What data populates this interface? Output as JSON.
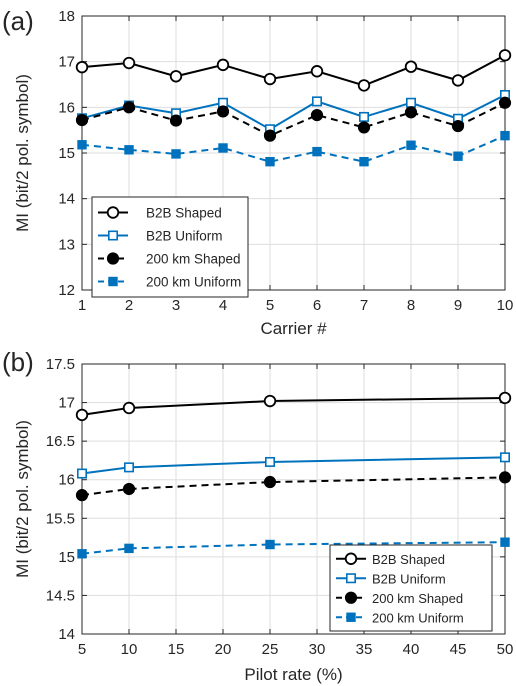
{
  "chart_data": [
    {
      "type": "line",
      "panel_label": "(a)",
      "xlabel": "Carrier #",
      "ylabel": "MI (bit/2 pol. symbol)",
      "x": [
        1,
        2,
        3,
        4,
        5,
        6,
        7,
        8,
        9,
        10
      ],
      "xlim": [
        1,
        10
      ],
      "ylim": [
        12,
        18
      ],
      "xticks": [
        1,
        2,
        3,
        4,
        5,
        6,
        7,
        8,
        9,
        10
      ],
      "yticks": [
        12,
        13,
        14,
        15,
        16,
        17,
        18
      ],
      "grid": true,
      "legend_position": "bottom-left",
      "series": [
        {
          "name": "B2B Shaped",
          "values": [
            16.88,
            16.97,
            16.68,
            16.93,
            16.62,
            16.79,
            16.48,
            16.89,
            16.59,
            17.14
          ],
          "color": "#000000",
          "dash": "solid",
          "marker": "circle-open"
        },
        {
          "name": "B2B Uniform",
          "values": [
            15.76,
            16.04,
            15.87,
            16.1,
            15.52,
            16.13,
            15.79,
            16.1,
            15.75,
            16.27
          ],
          "color": "#0072bd",
          "dash": "solid",
          "marker": "square-open"
        },
        {
          "name": "200 km Shaped",
          "values": [
            15.72,
            16.0,
            15.71,
            15.91,
            15.38,
            15.83,
            15.56,
            15.89,
            15.59,
            16.1
          ],
          "color": "#000000",
          "dash": "dashed",
          "marker": "circle-filled"
        },
        {
          "name": "200 km Uniform",
          "values": [
            15.18,
            15.07,
            14.98,
            15.11,
            14.81,
            15.03,
            14.81,
            15.17,
            14.93,
            15.38
          ],
          "color": "#0072bd",
          "dash": "dashed",
          "marker": "square-filled"
        }
      ]
    },
    {
      "type": "line",
      "panel_label": "(b)",
      "xlabel": "Pilot rate (%)",
      "ylabel": "MI (bit/2 pol. symbol)",
      "x": [
        5,
        10,
        25,
        50
      ],
      "xlim": [
        5,
        50
      ],
      "ylim": [
        14,
        17.5
      ],
      "xticks": [
        5,
        10,
        15,
        20,
        25,
        30,
        35,
        40,
        45,
        50
      ],
      "yticks": [
        14,
        14.5,
        15,
        15.5,
        16,
        16.5,
        17,
        17.5
      ],
      "grid": true,
      "legend_position": "bottom-right",
      "series": [
        {
          "name": "B2B Shaped",
          "values": [
            16.84,
            16.93,
            17.02,
            17.06
          ],
          "color": "#000000",
          "dash": "solid",
          "marker": "circle-open"
        },
        {
          "name": "B2B Uniform",
          "values": [
            16.08,
            16.16,
            16.23,
            16.29
          ],
          "color": "#0072bd",
          "dash": "solid",
          "marker": "square-open"
        },
        {
          "name": "200 km Shaped",
          "values": [
            15.8,
            15.88,
            15.97,
            16.03
          ],
          "color": "#000000",
          "dash": "dashed",
          "marker": "circle-filled"
        },
        {
          "name": "200 km  Uniform",
          "values": [
            15.04,
            15.11,
            15.16,
            15.19
          ],
          "color": "#0072bd",
          "dash": "dashed",
          "marker": "square-filled"
        }
      ]
    }
  ]
}
